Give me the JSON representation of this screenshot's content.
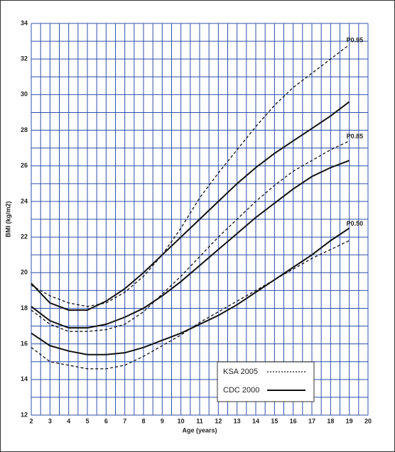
{
  "chart_data": {
    "type": "line",
    "x_label": "Age (years)",
    "y_label": "BMI (kg/m2)",
    "x": [
      2,
      3,
      4,
      5,
      6,
      7,
      8,
      9,
      10,
      11,
      12,
      13,
      14,
      15,
      16,
      17,
      18,
      19
    ],
    "xlim": [
      2,
      20
    ],
    "xticks": [
      2,
      3,
      4,
      5,
      6,
      7,
      8,
      9,
      10,
      11,
      12,
      13,
      14,
      15,
      16,
      17,
      18,
      19,
      20
    ],
    "ylim": [
      12,
      34
    ],
    "yticks": [
      12,
      14,
      16,
      18,
      20,
      22,
      24,
      26,
      28,
      30,
      32,
      34
    ],
    "grid": true,
    "grid_step": {
      "x": 0.5,
      "y": 1
    },
    "grid_color": "#2f4fa8",
    "percentiles": [
      "P0.95",
      "P0.85",
      "P0.50"
    ],
    "series": [
      {
        "name": "KSA 2005",
        "color": "#111",
        "dashed": true,
        "curves": [
          [
            19.3,
            18.7,
            18.3,
            18.1,
            18.3,
            18.9,
            19.8,
            21.0,
            22.5,
            24.2,
            25.6,
            26.9,
            28.2,
            29.4,
            30.4,
            31.2,
            32.0,
            32.8
          ],
          [
            17.9,
            17.1,
            16.7,
            16.7,
            16.8,
            17.1,
            17.8,
            18.8,
            19.8,
            20.9,
            22.0,
            23.0,
            24.0,
            24.9,
            25.7,
            26.3,
            26.9,
            27.4
          ],
          [
            15.8,
            15.0,
            14.8,
            14.6,
            14.6,
            14.8,
            15.3,
            15.9,
            16.5,
            17.2,
            17.8,
            18.4,
            19.0,
            19.6,
            20.2,
            20.8,
            21.3,
            21.8
          ]
        ]
      },
      {
        "name": "CDC 2000",
        "color": "#111",
        "dashed": false,
        "curves": [
          [
            19.4,
            18.3,
            17.9,
            17.9,
            18.4,
            19.1,
            20.0,
            21.0,
            22.0,
            23.0,
            24.0,
            25.0,
            25.9,
            26.7,
            27.4,
            28.1,
            28.8,
            29.6
          ],
          [
            18.1,
            17.3,
            16.9,
            16.9,
            17.1,
            17.5,
            18.0,
            18.7,
            19.5,
            20.4,
            21.3,
            22.2,
            23.1,
            23.9,
            24.7,
            25.4,
            25.9,
            26.3
          ],
          [
            16.6,
            15.9,
            15.6,
            15.4,
            15.4,
            15.5,
            15.8,
            16.2,
            16.6,
            17.1,
            17.6,
            18.2,
            18.9,
            19.6,
            20.3,
            21.0,
            21.8,
            22.5
          ]
        ]
      }
    ]
  }
}
